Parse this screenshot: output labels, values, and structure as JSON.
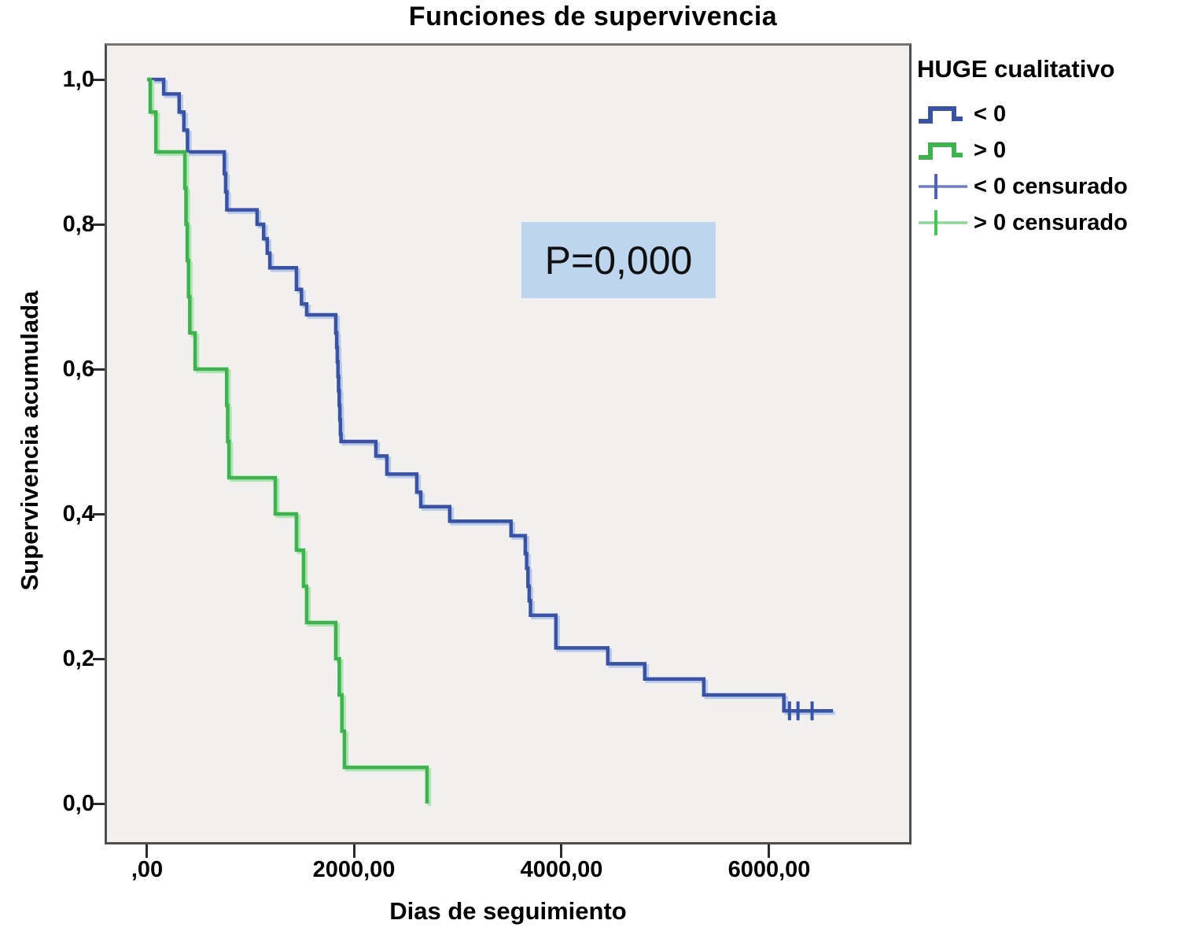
{
  "title": "Funciones de supervivencia",
  "legend": {
    "title": "HUGE cualitativo",
    "entries": [
      {
        "label": "< 0",
        "type": "step-line",
        "color": "#3a52a4"
      },
      {
        "label": "> 0",
        "type": "step-line",
        "color": "#3cb34c"
      },
      {
        "label": "< 0 censurado",
        "type": "censor-mark",
        "color": "#3a52a4"
      },
      {
        "label": "> 0 censurado",
        "type": "censor-mark",
        "color": "#3cb34c"
      }
    ]
  },
  "colors": {
    "blue_series": "#3a52a4",
    "blue_halo": "#b9c9e8",
    "green_series": "#3cb34c",
    "green_halo": "#b2e3b4",
    "plot_background": "#f1f0ee",
    "annotation_background": "#bdd6ed",
    "axis_text": "#000000"
  },
  "chart_data": {
    "type": "line",
    "subtype": "kaplan_meier_step",
    "title": "Funciones de supervivencia",
    "xlabel": "Dias de seguimiento",
    "ylabel": "Supervivencia acumulada",
    "xlim": [
      -400,
      7400
    ],
    "ylim": [
      -0.06,
      1.05
    ],
    "grid": false,
    "legend_position": "right",
    "xticks": {
      "values": [
        0,
        2000,
        4000,
        6000
      ],
      "labels": [
        ",00",
        "2000,00",
        "4000,00",
        "6000,00"
      ]
    },
    "yticks": {
      "values": [
        0.0,
        0.2,
        0.4,
        0.6,
        0.8,
        1.0
      ],
      "labels": [
        "0,0",
        "0,2",
        "0,4",
        "0,6",
        "0,8",
        "1,0"
      ]
    },
    "annotation": {
      "text": "P=0,000",
      "x_days": 2800,
      "y_survival": 0.72,
      "bg_color": "#bdd6ed"
    },
    "series": [
      {
        "name": "< 0",
        "color": "#3a52a4",
        "halo_color": "#b9c9e8",
        "end_time": 6620,
        "censored_survival": 0.128,
        "censored_times": [
          6200,
          6282,
          6418
        ],
        "steps": [
          [
            0,
            1.0
          ],
          [
            160,
            0.98
          ],
          [
            310,
            0.955
          ],
          [
            355,
            0.93
          ],
          [
            390,
            0.9
          ],
          [
            745,
            0.87
          ],
          [
            758,
            0.845
          ],
          [
            770,
            0.82
          ],
          [
            1062,
            0.8
          ],
          [
            1125,
            0.78
          ],
          [
            1160,
            0.76
          ],
          [
            1185,
            0.74
          ],
          [
            1441,
            0.71
          ],
          [
            1490,
            0.69
          ],
          [
            1540,
            0.675
          ],
          [
            1821,
            0.65
          ],
          [
            1830,
            0.63
          ],
          [
            1836,
            0.61
          ],
          [
            1842,
            0.59
          ],
          [
            1848,
            0.57
          ],
          [
            1854,
            0.55
          ],
          [
            1860,
            0.53
          ],
          [
            1866,
            0.51
          ],
          [
            1872,
            0.5
          ],
          [
            2208,
            0.48
          ],
          [
            2314,
            0.455
          ],
          [
            2603,
            0.43
          ],
          [
            2641,
            0.41
          ],
          [
            2921,
            0.39
          ],
          [
            3513,
            0.37
          ],
          [
            3650,
            0.345
          ],
          [
            3663,
            0.325
          ],
          [
            3676,
            0.3
          ],
          [
            3688,
            0.28
          ],
          [
            3700,
            0.26
          ],
          [
            3945,
            0.215
          ],
          [
            4446,
            0.193
          ],
          [
            4803,
            0.172
          ],
          [
            5372,
            0.15
          ],
          [
            6146,
            0.128
          ]
        ]
      },
      {
        "name": "> 0",
        "color": "#3cb34c",
        "halo_color": "#b2e3b4",
        "end_time": 2701,
        "censored_survival": null,
        "censored_times": [],
        "steps": [
          [
            0,
            1.0
          ],
          [
            30,
            0.955
          ],
          [
            85,
            0.9
          ],
          [
            364,
            0.85
          ],
          [
            376,
            0.8
          ],
          [
            388,
            0.75
          ],
          [
            400,
            0.7
          ],
          [
            412,
            0.65
          ],
          [
            463,
            0.6
          ],
          [
            768,
            0.55
          ],
          [
            778,
            0.5
          ],
          [
            790,
            0.45
          ],
          [
            1237,
            0.4
          ],
          [
            1441,
            0.35
          ],
          [
            1510,
            0.3
          ],
          [
            1540,
            0.25
          ],
          [
            1821,
            0.2
          ],
          [
            1855,
            0.15
          ],
          [
            1880,
            0.1
          ],
          [
            1904,
            0.05
          ],
          [
            2701,
            0.0
          ]
        ]
      }
    ]
  }
}
